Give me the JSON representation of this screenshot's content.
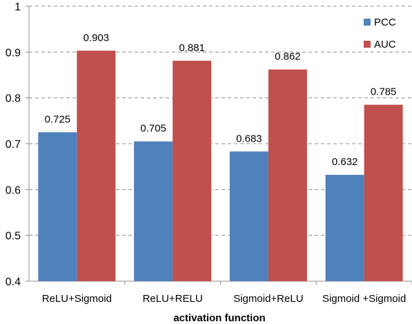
{
  "chart_data": {
    "type": "bar",
    "title": "",
    "xlabel": "activation function",
    "ylabel": "",
    "categories": [
      "ReLU+Sigmoid",
      "ReLU+RELU",
      "Sigmoid+ReLU",
      "Sigmoid +Sigmoid"
    ],
    "series": [
      {
        "name": "PCC",
        "color": "#4f81bd",
        "values": [
          0.725,
          0.705,
          0.683,
          0.632
        ],
        "labels": [
          "0.725",
          "0.705",
          "0.683",
          "0.632"
        ]
      },
      {
        "name": "AUC",
        "color": "#c0504d",
        "values": [
          0.903,
          0.881,
          0.862,
          0.785
        ],
        "labels": [
          "0.903",
          "0.881",
          "0.862",
          "0.785"
        ]
      }
    ],
    "ylim": [
      0.4,
      1
    ],
    "yticks": [
      0.4,
      0.5,
      0.6,
      0.7,
      0.8,
      0.9,
      1
    ],
    "ytick_labels": [
      "0.4",
      "0.5",
      "0.6",
      "0.7",
      "0.8",
      "0.9",
      "1"
    ],
    "grid": true,
    "legend_position": "top-right"
  }
}
